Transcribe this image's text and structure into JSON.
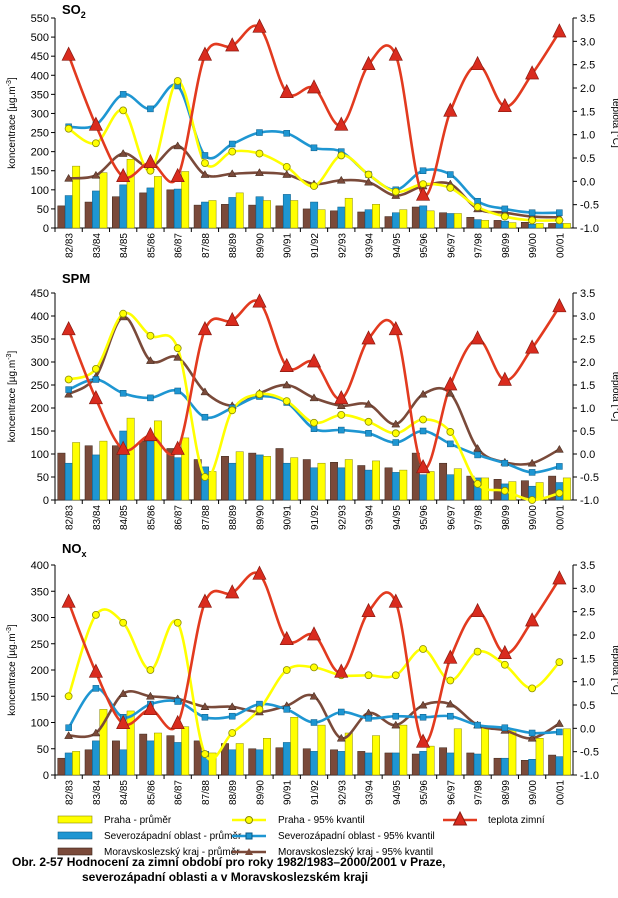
{
  "colors": {
    "praha": "#ffff00",
    "sz": "#1e96d2",
    "msk": "#7a4a3a",
    "temp": "#e23a1f",
    "temp_marker": "#d92b1e"
  },
  "categories": [
    "82/83",
    "83/84",
    "84/85",
    "85/86",
    "86/87",
    "87/88",
    "88/89",
    "89/90",
    "90/91",
    "91/92",
    "92/93",
    "93/94",
    "94/95",
    "95/96",
    "96/97",
    "97/98",
    "98/99",
    "99/00",
    "00/01"
  ],
  "chart_data": [
    {
      "type": "bar",
      "title": "SO2",
      "ylabel": "koncentrace [µg.m-3]",
      "y2label": "teplota [°C]",
      "ylim": [
        0,
        550
      ],
      "y2lim": [
        -1.0,
        3.5
      ],
      "yticks": [
        "0",
        "50",
        "100",
        "150",
        "200",
        "250",
        "300",
        "350",
        "400",
        "450",
        "500",
        "550"
      ],
      "y2ticks": [
        "-1.0",
        "-0.5",
        "0.0",
        "0.5",
        "1.0",
        "1.5",
        "2.0",
        "2.5",
        "3.0",
        "3.5"
      ],
      "grid": false,
      "bars": {
        "msk_mean": [
          58,
          68,
          82,
          92,
          100,
          60,
          62,
          60,
          58,
          50,
          45,
          42,
          30,
          55,
          40,
          28,
          20,
          15,
          12
        ],
        "sz_mean": [
          85,
          97,
          113,
          105,
          102,
          68,
          80,
          82,
          88,
          68,
          55,
          48,
          40,
          58,
          38,
          22,
          18,
          10,
          12
        ],
        "praha_mean": [
          162,
          145,
          180,
          135,
          148,
          72,
          92,
          72,
          72,
          48,
          78,
          62,
          48,
          45,
          38,
          20,
          14,
          12,
          12
        ]
      },
      "lines": {
        "praha_p95": [
          260,
          222,
          308,
          150,
          385,
          170,
          200,
          195,
          160,
          110,
          190,
          140,
          95,
          115,
          105,
          55,
          30,
          20,
          20
        ],
        "sz_p95": [
          265,
          270,
          350,
          312,
          372,
          190,
          220,
          250,
          248,
          210,
          200,
          140,
          100,
          150,
          140,
          70,
          50,
          40,
          40
        ],
        "msk_p95": [
          130,
          138,
          195,
          160,
          215,
          140,
          142,
          145,
          140,
          115,
          125,
          120,
          85,
          110,
          115,
          50,
          40,
          30,
          28
        ],
        "temp": [
          2.7,
          1.2,
          0.1,
          0.4,
          0.1,
          2.7,
          2.9,
          3.3,
          1.9,
          2.0,
          1.2,
          2.5,
          2.7,
          -0.3,
          1.5,
          2.5,
          1.6,
          2.3,
          3.2
        ]
      }
    },
    {
      "type": "bar",
      "title": "SPM",
      "ylabel": "koncentrace [µg.m-3]",
      "y2label": "teplota [°C]",
      "ylim": [
        0,
        450
      ],
      "y2lim": [
        -1.0,
        3.5
      ],
      "yticks": [
        "0",
        "50",
        "100",
        "150",
        "200",
        "250",
        "300",
        "350",
        "400",
        "450"
      ],
      "y2ticks": [
        "-1.0",
        "-0.5",
        "0.0",
        "0.5",
        "1.0",
        "1.5",
        "2.0",
        "2.5",
        "3.0",
        "3.5"
      ],
      "grid": false,
      "bars": {
        "msk_mean": [
          102,
          118,
          118,
          128,
          112,
          88,
          95,
          102,
          112,
          88,
          82,
          75,
          70,
          102,
          80,
          52,
          45,
          42,
          52
        ],
        "sz_mean": [
          80,
          98,
          150,
          128,
          92,
          72,
          80,
          98,
          80,
          70,
          70,
          65,
          60,
          55,
          55,
          48,
          35,
          30,
          38
        ],
        "praha_mean": [
          125,
          128,
          178,
          172,
          135,
          62,
          105,
          95,
          92,
          80,
          88,
          85,
          65,
          62,
          68,
          48,
          40,
          38,
          48
        ]
      },
      "lines": {
        "praha_p95": [
          262,
          285,
          405,
          357,
          330,
          50,
          195,
          230,
          215,
          168,
          185,
          170,
          145,
          175,
          148,
          35,
          20,
          0,
          15
        ],
        "sz_p95": [
          240,
          262,
          232,
          222,
          237,
          180,
          200,
          225,
          212,
          155,
          152,
          145,
          125,
          150,
          122,
          98,
          80,
          60,
          73
        ],
        "msk_p95": [
          230,
          268,
          398,
          303,
          310,
          235,
          205,
          232,
          250,
          222,
          205,
          208,
          165,
          230,
          232,
          112,
          82,
          80,
          110
        ],
        "temp": [
          2.7,
          1.2,
          0.1,
          0.4,
          0.1,
          2.7,
          2.9,
          3.3,
          1.9,
          2.0,
          1.2,
          2.5,
          2.7,
          -0.3,
          1.5,
          2.5,
          1.6,
          2.3,
          3.2
        ]
      }
    },
    {
      "type": "bar",
      "title": "NOx",
      "ylabel": "koncentrace [µg.m-3]",
      "y2label": "teplota [°C]",
      "ylim": [
        0,
        400
      ],
      "y2lim": [
        -1.0,
        3.5
      ],
      "yticks": [
        "0",
        "50",
        "100",
        "150",
        "200",
        "250",
        "300",
        "350",
        "400"
      ],
      "y2ticks": [
        "-1.0",
        "-0.5",
        "0.0",
        "0.5",
        "1.0",
        "1.5",
        "2.0",
        "2.5",
        "3.0",
        "3.5"
      ],
      "grid": false,
      "bars": {
        "msk_mean": [
          32,
          48,
          65,
          78,
          75,
          65,
          60,
          50,
          52,
          50,
          48,
          45,
          42,
          40,
          52,
          42,
          32,
          28,
          38
        ],
        "sz_mean": [
          42,
          65,
          48,
          65,
          62,
          45,
          48,
          48,
          62,
          45,
          45,
          42,
          42,
          45,
          42,
          40,
          32,
          30,
          35
        ],
        "praha_mean": [
          45,
          125,
          122,
          80,
          92,
          42,
          60,
          70,
          110,
          95,
          80,
          75,
          95,
          55,
          88,
          92,
          85,
          70,
          88
        ]
      },
      "lines": {
        "praha_p95": [
          150,
          305,
          290,
          200,
          290,
          40,
          80,
          125,
          200,
          205,
          190,
          190,
          190,
          240,
          180,
          235,
          210,
          165,
          215
        ],
        "sz_p95": [
          90,
          165,
          110,
          135,
          140,
          110,
          112,
          135,
          125,
          100,
          120,
          108,
          112,
          110,
          112,
          95,
          90,
          80,
          82
        ],
        "msk_p95": [
          75,
          80,
          155,
          150,
          145,
          130,
          130,
          120,
          132,
          150,
          70,
          118,
          95,
          133,
          135,
          95,
          85,
          70,
          98
        ],
        "temp": [
          2.7,
          1.2,
          0.1,
          0.4,
          0.1,
          2.7,
          2.9,
          3.3,
          1.9,
          2.0,
          1.2,
          2.5,
          2.7,
          -0.3,
          1.5,
          2.5,
          1.6,
          2.3,
          3.2
        ]
      }
    }
  ],
  "legend": {
    "praha_mean": "Praha - průměr",
    "sz_mean": "Severozápadní oblast - průměr",
    "msk_mean": "Moravskoslezský kraj - průměr",
    "praha_p95": "Praha - 95% kvantil",
    "sz_p95": "Severozápadní oblast - 95% kvantil",
    "msk_p95": "Moravskoslezský kraj - 95% kvantil",
    "temp": "teplota zimní"
  },
  "caption": {
    "line1": "Obr. 2-57  Hodnocení za zimní období pro roky 1982/1983–2000/2001 v Praze,",
    "line2": "severozápadní oblasti a v Moravskoslezském kraji"
  },
  "panel_titles": {
    "so2_main": "SO",
    "so2_sub": "2",
    "spm": "SPM",
    "nox_main": "NO",
    "nox_sub": "x"
  },
  "axis_text": {
    "ylabel_main": "koncentrace  [µg.m",
    "ylabel_sup": "-3",
    "ylabel_end": "]",
    "y2label": "teplota [°C]"
  }
}
